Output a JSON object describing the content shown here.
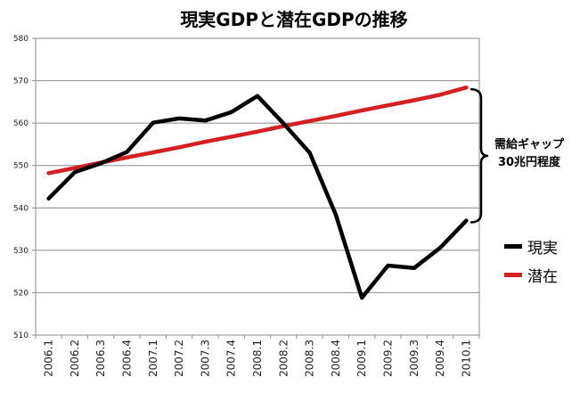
{
  "chart_data": {
    "type": "line",
    "title": "現実GDPと潜在GDPの推移",
    "categories": [
      "2006.1",
      "2006.2",
      "2006.3",
      "2006.4",
      "2007.1",
      "2007.2",
      "2007.3",
      "2007.4",
      "2008.1",
      "2008.2",
      "2008.3",
      "2008.4",
      "2009.1",
      "2009.2",
      "2009.3",
      "2009.4",
      "2010.1"
    ],
    "series": [
      {
        "name": "現実",
        "color": "#000000",
        "values": [
          542.2,
          548.4,
          550.5,
          553.2,
          560.1,
          561.1,
          560.6,
          562.6,
          566.4,
          559.9,
          553.0,
          538.4,
          518.8,
          526.4,
          525.8,
          530.6,
          537.0
        ]
      },
      {
        "name": "潜在",
        "color": "#d42020",
        "values": [
          548.2,
          549.4,
          550.7,
          551.9,
          553.1,
          554.3,
          555.6,
          556.8,
          558.0,
          559.3,
          560.5,
          561.7,
          563.0,
          564.2,
          565.4,
          566.7,
          568.4
        ]
      }
    ],
    "ylim": [
      510,
      580
    ],
    "yticks": [
      "510",
      "520",
      "530",
      "540",
      "550",
      "560",
      "570",
      "580"
    ],
    "grid": true,
    "xlabel": "",
    "ylabel": "",
    "legend_position": "right",
    "annotation": {
      "line1": "需給ギャップ",
      "line2": "30兆円程度"
    }
  }
}
